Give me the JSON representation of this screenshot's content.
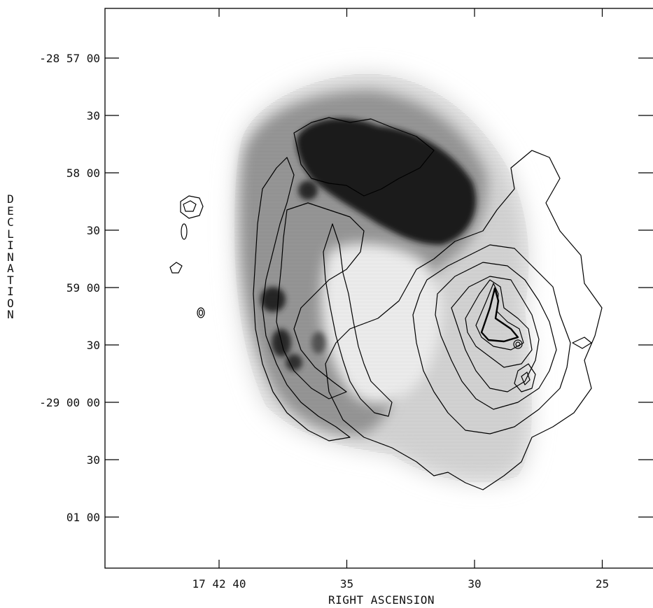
{
  "chart_data": {
    "type": "contour",
    "xlabel": "RIGHT ASCENSION",
    "ylabel": "DECLINATION",
    "x_ticks": [
      {
        "label": "17 42 40",
        "value_s": 40
      },
      {
        "label": "35",
        "value_s": 35
      },
      {
        "label": "30",
        "value_s": 30
      },
      {
        "label": "25",
        "value_s": 25
      }
    ],
    "y_ticks": [
      {
        "label": "-28 57 00",
        "value_arcsec": -104220
      },
      {
        "label": "30",
        "value_arcsec": -104250
      },
      {
        "label": "58 00",
        "value_arcsec": -104280
      },
      {
        "label": "30",
        "value_arcsec": -104310
      },
      {
        "label": "59 00",
        "value_arcsec": -104340
      },
      {
        "label": "30",
        "value_arcsec": -104370
      },
      {
        "label": "-29 00 00",
        "value_arcsec": -104400
      },
      {
        "label": "30",
        "value_arcsec": -104430
      },
      {
        "label": "01 00",
        "value_arcsec": -104460
      }
    ],
    "grayscale": "dense emission shell (darkest along the northern rim, around RA 33-30 s, Dec -28 57 45 to -28 58 30)",
    "contours": "compact source near RA 29.5-27 s, Dec -28 59 00 to -29 00 00 with a ring of surrounding contours",
    "grid": false
  }
}
